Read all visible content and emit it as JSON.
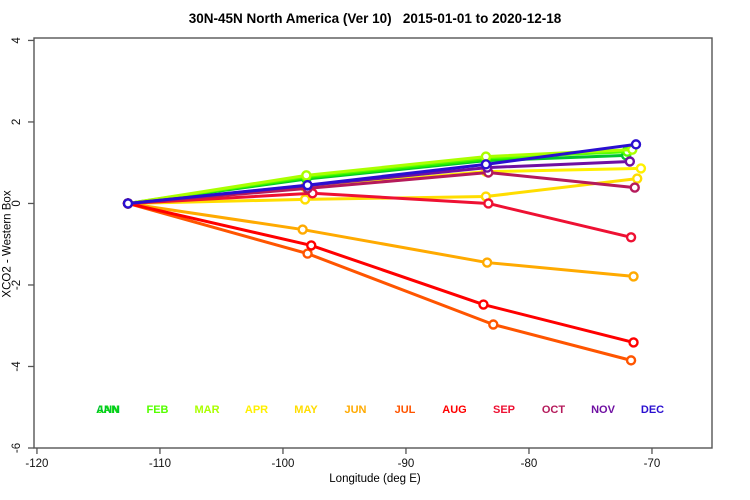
{
  "header": {
    "title": "30N-45N North America (Ver 10)   2015-01-01 to 2020-12-18"
  },
  "chart_data": {
    "type": "line",
    "title": "30N-45N North America (Ver 10)   2015-01-01 to 2020-12-18",
    "xlabel": "Longitude (deg E)",
    "ylabel": "XCO2 - Western Box",
    "xlim": [
      -120.24,
      -65.12
    ],
    "ylim": [
      -6.0,
      4.06
    ],
    "xticks": [
      -120,
      -110,
      -100,
      -90,
      -80,
      -70
    ],
    "yticks": [
      -6,
      -4,
      -2,
      0,
      2,
      4
    ],
    "grid": false,
    "legend_position": "bottom-inside",
    "marker": "open-circle",
    "series": [
      {
        "name": "ANN",
        "color": "#00C42E",
        "legend_slot": 0,
        "x": [
          -112.6,
          -98.1,
          -83.5,
          -72.1
        ],
        "y": [
          0,
          0.6,
          1.05,
          1.18
        ]
      },
      {
        "name": "JAN",
        "color": "#22EE00",
        "legend_slot": 0,
        "x": [
          -112.6,
          -98.1,
          -83.5,
          -72.0
        ],
        "y": [
          0,
          0.63,
          1.08,
          1.3
        ]
      },
      {
        "name": "FEB",
        "color": "#55FF00",
        "legend_slot": 1,
        "x": [
          -112.6,
          -98.1,
          -83.5,
          -72.0
        ],
        "y": [
          0,
          0.66,
          1.12,
          1.27
        ]
      },
      {
        "name": "MAR",
        "color": "#AAFF00",
        "legend_slot": 2,
        "x": [
          -112.6,
          -98.1,
          -83.5,
          -71.6
        ],
        "y": [
          0,
          0.69,
          1.15,
          1.32
        ]
      },
      {
        "name": "APR",
        "color": "#FFF000",
        "legend_slot": 3,
        "x": [
          -112.6,
          -98.2,
          -83.5,
          -70.9
        ],
        "y": [
          0,
          0.4,
          0.78,
          0.86
        ]
      },
      {
        "name": "MAY",
        "color": "#FFDD00",
        "legend_slot": 4,
        "x": [
          -112.6,
          -98.2,
          -83.5,
          -71.2
        ],
        "y": [
          0,
          0.1,
          0.17,
          0.61
        ]
      },
      {
        "name": "JUN",
        "color": "#FFAA00",
        "legend_slot": 5,
        "x": [
          -112.6,
          -98.4,
          -83.4,
          -71.5
        ],
        "y": [
          0,
          -0.64,
          -1.45,
          -1.79
        ]
      },
      {
        "name": "JUL",
        "color": "#FF5500",
        "legend_slot": 6,
        "x": [
          -112.6,
          -98.0,
          -82.9,
          -71.7
        ],
        "y": [
          0,
          -1.23,
          -2.97,
          -3.85
        ]
      },
      {
        "name": "AUG",
        "color": "#FF0000",
        "legend_slot": 7,
        "x": [
          -112.6,
          -97.7,
          -83.7,
          -71.5
        ],
        "y": [
          0,
          -1.03,
          -2.48,
          -3.41
        ]
      },
      {
        "name": "SEP",
        "color": "#EE1133",
        "legend_slot": 8,
        "x": [
          -112.6,
          -97.6,
          -83.3,
          -71.7
        ],
        "y": [
          0,
          0.25,
          0.0,
          -0.83
        ]
      },
      {
        "name": "OCT",
        "color": "#B51A5B",
        "legend_slot": 9,
        "x": [
          -112.6,
          -98.0,
          -83.3,
          -71.4
        ],
        "y": [
          0,
          0.37,
          0.76,
          0.39
        ]
      },
      {
        "name": "NOV",
        "color": "#6F10A2",
        "legend_slot": 10,
        "x": [
          -112.6,
          -98.0,
          -83.4,
          -71.8
        ],
        "y": [
          0,
          0.44,
          0.88,
          1.03
        ]
      },
      {
        "name": "DEC",
        "color": "#2A0FD0",
        "legend_slot": 11,
        "x": [
          -112.6,
          -98.0,
          -83.5,
          -71.3
        ],
        "y": [
          0,
          0.45,
          0.96,
          1.45
        ]
      }
    ],
    "legend_labels": [
      "JAN",
      "ANN",
      "FEB",
      "MAR",
      "APR",
      "MAY",
      "JUN",
      "JUL",
      "AUG",
      "SEP",
      "OCT",
      "NOV",
      "DEC"
    ]
  },
  "style": {
    "axis_color": "#555555",
    "tick_text_color": "#111111"
  }
}
